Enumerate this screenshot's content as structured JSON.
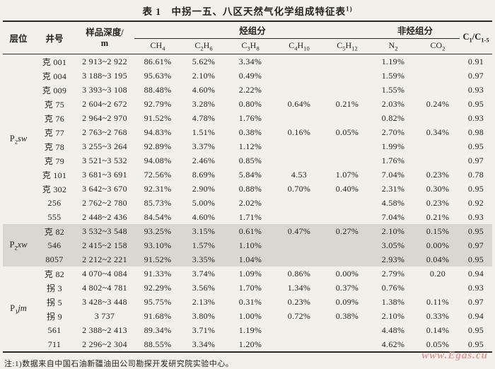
{
  "page": {
    "title": "表 1　中拐一五、八区天然气化学组成特征表",
    "title_note_sup": "1)",
    "footnote": "注:1)数据来自中国石油新疆油田公司勘探开发研究院实验中心。",
    "watermark": "www.Egas.cu",
    "colors": {
      "paper": "#f1f0eb",
      "shaded_band": "#d8d7d1",
      "ink": "#23221f",
      "rule": "#2b2a27",
      "watermark": "#e59995"
    }
  },
  "table": {
    "headers": {
      "layer": "层位",
      "well": "井号",
      "depth": "样品深度/\nm",
      "hydrocarbon_group": "烃组分",
      "non_hydrocarbon_group": "非烃组分",
      "hydrocarbons": [
        "CH_4_",
        "C_2_H_6_",
        "C_3_H_8_",
        "C_4_H_10_",
        "C_5_H_12_"
      ],
      "non_hydrocarbons": [
        "N_2_",
        "CO_2_"
      ],
      "ratio": "C_1_/C_1-5_"
    },
    "groups": [
      {
        "layer": "P_2_*sw*",
        "shaded": false,
        "rows": [
          {
            "well": "克 001",
            "depth": "2 913~2 922",
            "values": [
              "86.61%",
              "5.62%",
              "3.34%",
              "",
              "",
              "1.19%",
              "",
              "0.91"
            ]
          },
          {
            "well": "克 004",
            "depth": "3 188~3 195",
            "values": [
              "95.63%",
              "2.10%",
              "0.49%",
              "",
              "",
              "1.59%",
              "",
              "0.97"
            ]
          },
          {
            "well": "克 009",
            "depth": "3 393~3 108",
            "values": [
              "88.48%",
              "4.60%",
              "2.22%",
              "",
              "",
              "1.55%",
              "",
              "0.93"
            ]
          },
          {
            "well": "克 75",
            "depth": "2 604~2 672",
            "values": [
              "92.79%",
              "3.28%",
              "0.80%",
              "0.64%",
              "0.21%",
              "2.03%",
              "0.24%",
              "0.95"
            ]
          },
          {
            "well": "克 76",
            "depth": "2 964~2 970",
            "values": [
              "91.52%",
              "4.78%",
              "1.76%",
              "",
              "",
              "0.82%",
              "",
              "0.93"
            ]
          },
          {
            "well": "克 77",
            "depth": "2 763~2 768",
            "values": [
              "94.83%",
              "1.51%",
              "0.38%",
              "0.16%",
              "0.05%",
              "2.70%",
              "0.34%",
              "0.98"
            ]
          },
          {
            "well": "克 78",
            "depth": "3 255~3 264",
            "values": [
              "92.89%",
              "3.37%",
              "1.12%",
              "",
              "",
              "1.99%",
              "",
              "0.95"
            ]
          },
          {
            "well": "克 79",
            "depth": "3 521~3 532",
            "values": [
              "94.08%",
              "2.46%",
              "0.85%",
              "",
              "",
              "1.76%",
              "",
              "0.97"
            ]
          },
          {
            "well": "克 101",
            "depth": "3 681~3 691",
            "values": [
              "72.56%",
              "8.69%",
              "5.84%",
              "4.53",
              "1.07%",
              "7.04%",
              "0.23%",
              "0.78"
            ]
          },
          {
            "well": "克 302",
            "depth": "3 642~3 670",
            "values": [
              "92.31%",
              "2.90%",
              "0.88%",
              "0.70%",
              "0.40%",
              "2.31%",
              "0.30%",
              "0.95"
            ]
          },
          {
            "well": "256",
            "depth": "2 762~2 780",
            "values": [
              "85.73%",
              "5.00%",
              "2.02%",
              "",
              "",
              "4.58%",
              "0.23%",
              "0.92"
            ]
          },
          {
            "well": "555",
            "depth": "2 448~2 436",
            "values": [
              "84.54%",
              "4.60%",
              "1.71%",
              "",
              "",
              "7.04%",
              "0.21%",
              "0.93"
            ]
          }
        ]
      },
      {
        "layer": "P_2_*xw*",
        "shaded": true,
        "rows": [
          {
            "well": "克 82",
            "depth": "3 532~3 548",
            "values": [
              "93.25%",
              "3.15%",
              "0.61%",
              "0.47%",
              "0.27%",
              "2.10%",
              "0.15%",
              "0.95"
            ]
          },
          {
            "well": "546",
            "depth": "2 415~2 158",
            "values": [
              "93.10%",
              "1.57%",
              "1.10%",
              "",
              "",
              "3.05%",
              "0.00%",
              "0.97"
            ]
          },
          {
            "well": "8057",
            "depth": "2 212~2 221",
            "values": [
              "91.52%",
              "3.35%",
              "1.04%",
              "",
              "",
              "2.93%",
              "0.04%",
              "0.95"
            ]
          }
        ]
      },
      {
        "layer": "P_1_*jm*",
        "shaded": false,
        "rows": [
          {
            "well": "克 82",
            "depth": "4 070~4 084",
            "values": [
              "91.33%",
              "3.74%",
              "1.09%",
              "0.86%",
              "0.00%",
              "2.79%",
              "0.20",
              "0.94"
            ]
          },
          {
            "well": "拐 3",
            "depth": "4 802~4 781",
            "values": [
              "92.29%",
              "3.56%",
              "1.70%",
              "1.34%",
              "0.37%",
              "0.76%",
              "",
              "0.93"
            ]
          },
          {
            "well": "拐 5",
            "depth": "3 428~3 448",
            "values": [
              "95.75%",
              "2.13%",
              "0.31%",
              "0.23%",
              "0.09%",
              "1.38%",
              "0.11%",
              "0.97"
            ]
          },
          {
            "well": "拐 9",
            "depth": "3 737",
            "values": [
              "91.68%",
              "3.80%",
              "1.00%",
              "0.72%",
              "0.38%",
              "2.10%",
              "0.33%",
              "0.94"
            ]
          },
          {
            "well": "561",
            "depth": "2 388~2 413",
            "values": [
              "89.34%",
              "3.71%",
              "1.19%",
              "",
              "",
              "4.48%",
              "0.14%",
              "0.95"
            ]
          },
          {
            "well": "711",
            "depth": "2 296~2 304",
            "values": [
              "88.55%",
              "3.34%",
              "1.20%",
              "",
              "",
              "4.62%",
              "0.05%",
              "0.95"
            ]
          }
        ]
      }
    ]
  }
}
